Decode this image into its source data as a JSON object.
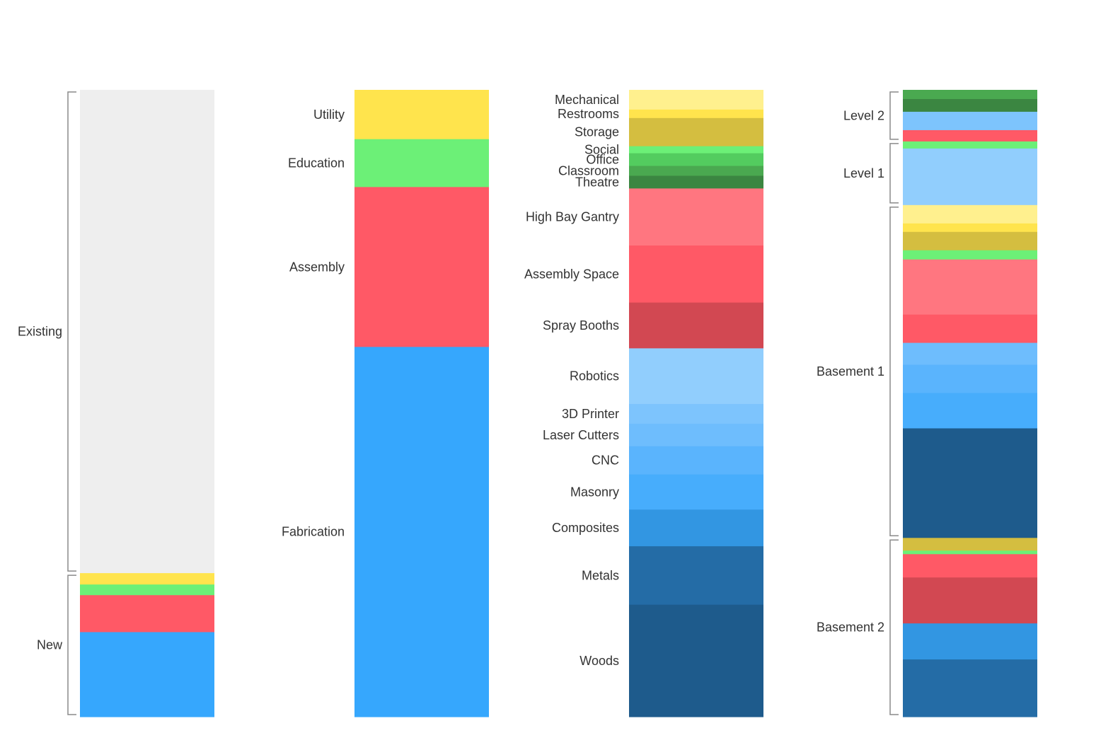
{
  "chart_data": [
    {
      "type": "stacked-bar",
      "title": "",
      "segments": [
        {
          "name": "",
          "value": 68.0,
          "color": "#eeeeee"
        },
        {
          "name": "",
          "value": 1.6,
          "color": "#ffe44d"
        },
        {
          "name": "",
          "value": 1.5,
          "color": "#6cf077"
        },
        {
          "name": "",
          "value": 5.2,
          "color": "#ff5966"
        },
        {
          "name": "",
          "value": 11.9,
          "color": "#36a7fd"
        }
      ],
      "groups": [
        {
          "label": "Existing",
          "from": 0,
          "to": 1
        },
        {
          "label": "New",
          "from": 1,
          "to": 5
        }
      ]
    },
    {
      "type": "stacked-bar",
      "title": "",
      "segments": [
        {
          "name": "Utility",
          "value": 7.0,
          "color": "#ffe44d"
        },
        {
          "name": "Education",
          "value": 6.8,
          "color": "#6cf077"
        },
        {
          "name": "Assembly",
          "value": 22.7,
          "color": "#ff5966"
        },
        {
          "name": "Fabrication",
          "value": 52.5,
          "color": "#36a7fd"
        }
      ]
    },
    {
      "type": "stacked-bar",
      "title": "",
      "segments": [
        {
          "name": "Mechanical",
          "value": 2.8,
          "color": "#fff08e"
        },
        {
          "name": "Restrooms",
          "value": 1.2,
          "color": "#ffe44d"
        },
        {
          "name": "Storage",
          "value": 4.0,
          "color": "#d4be40"
        },
        {
          "name": "Social",
          "value": 1.0,
          "color": "#6cf077"
        },
        {
          "name": "Office",
          "value": 1.8,
          "color": "#53cc5f"
        },
        {
          "name": "Classroom",
          "value": 1.4,
          "color": "#4aa950"
        },
        {
          "name": "Theatre",
          "value": 1.8,
          "color": "#3b8641"
        },
        {
          "name": "High Bay Gantry",
          "value": 8.1,
          "color": "#ff7680"
        },
        {
          "name": "Assembly Space",
          "value": 8.1,
          "color": "#ff5966"
        },
        {
          "name": "Spray Booths",
          "value": 6.5,
          "color": "#d24852"
        },
        {
          "name": "Robotics",
          "value": 7.9,
          "color": "#91cefd"
        },
        {
          "name": "3D Printer",
          "value": 2.8,
          "color": "#7dc4fd"
        },
        {
          "name": "Laser Cutters",
          "value": 3.2,
          "color": "#6ebdfd"
        },
        {
          "name": "CNC",
          "value": 4.0,
          "color": "#5ab4fd"
        },
        {
          "name": "Masonry",
          "value": 5.0,
          "color": "#47adfc"
        },
        {
          "name": "Composites",
          "value": 5.2,
          "color": "#3296e2"
        },
        {
          "name": "Metals",
          "value": 8.3,
          "color": "#246ca6"
        },
        {
          "name": "Woods",
          "value": 15.9,
          "color": "#1e5b8c"
        }
      ]
    },
    {
      "type": "stacked-bar",
      "title": "",
      "segments": [
        {
          "name": "",
          "value": 1.3,
          "color": "#4aa950"
        },
        {
          "name": "",
          "value": 1.8,
          "color": "#3b8641"
        },
        {
          "name": "",
          "value": 2.6,
          "color": "#7dc4fd"
        },
        {
          "name": "",
          "value": 1.6,
          "color": "#ff5966"
        },
        {
          "name": "",
          "value": 1.0,
          "color": "#6cf077"
        },
        {
          "name": "",
          "value": 8.0,
          "color": "#91cefd"
        },
        {
          "name": "",
          "value": 2.6,
          "color": "#fff08e"
        },
        {
          "name": "",
          "value": 1.2,
          "color": "#ffe44d"
        },
        {
          "name": "",
          "value": 2.6,
          "color": "#d4be40"
        },
        {
          "name": "",
          "value": 1.3,
          "color": "#6cf077"
        },
        {
          "name": "",
          "value": 7.8,
          "color": "#ff7680"
        },
        {
          "name": "",
          "value": 4.0,
          "color": "#ff5966"
        },
        {
          "name": "",
          "value": 3.1,
          "color": "#6ebdfd"
        },
        {
          "name": "",
          "value": 4.0,
          "color": "#5ab4fd"
        },
        {
          "name": "",
          "value": 5.0,
          "color": "#47adfc"
        },
        {
          "name": "",
          "value": 15.5,
          "color": "#1e5b8c"
        },
        {
          "name": "",
          "value": 1.8,
          "color": "#d4be40"
        },
        {
          "name": "",
          "value": 0.5,
          "color": "#6cf077"
        },
        {
          "name": "",
          "value": 3.3,
          "color": "#ff5966"
        },
        {
          "name": "",
          "value": 6.5,
          "color": "#d24852"
        },
        {
          "name": "",
          "value": 5.1,
          "color": "#3296e2"
        },
        {
          "name": "",
          "value": 8.1,
          "color": "#246ca6"
        }
      ],
      "groups": [
        {
          "label": "Level 2",
          "from": 0,
          "to": 4
        },
        {
          "label": "Level 1",
          "from": 4,
          "to": 6
        },
        {
          "label": "Basement 1",
          "from": 6,
          "to": 16
        },
        {
          "label": "Basement 2",
          "from": 16,
          "to": 22
        }
      ]
    }
  ]
}
